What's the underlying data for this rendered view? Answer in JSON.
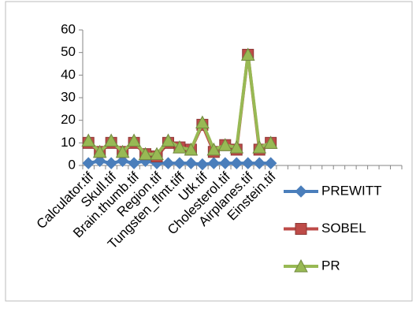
{
  "chart_data": {
    "type": "line",
    "categories": [
      "Calculator.tif",
      null,
      "Skull.tif",
      null,
      "Brain.thumb.tif",
      null,
      "Region.tif",
      null,
      "Tungsten_flmt.tiff",
      null,
      "Utk.tif",
      null,
      "Cholesterol.tif",
      null,
      "Airplanes.tif",
      null,
      "Einstein.tif",
      null,
      null,
      null,
      null,
      null,
      null,
      null,
      null,
      null,
      null,
      null
    ],
    "series": [
      {
        "name": "PREWITT",
        "color": "#4a7ebb",
        "marker": "diamond",
        "values": [
          1,
          2,
          1,
          2,
          1,
          2,
          1,
          1,
          1,
          1,
          0.5,
          1,
          1,
          1,
          1,
          1,
          1,
          null,
          null,
          null,
          null,
          null,
          null,
          null,
          null,
          null,
          null,
          null
        ]
      },
      {
        "name": "SOBEL",
        "color": "#be4b48",
        "marker": "square",
        "values": [
          10,
          6,
          10,
          6,
          10,
          5,
          4,
          10,
          8,
          7,
          18,
          6,
          9,
          7,
          49,
          7,
          10,
          null,
          null,
          null,
          null,
          null,
          null,
          null,
          null,
          null,
          null,
          null
        ]
      },
      {
        "name": "PR",
        "color": "#98b954",
        "marker": "triangle",
        "values": [
          11,
          6,
          11,
          6,
          11,
          5,
          5,
          11,
          8,
          7,
          19,
          7,
          9,
          8,
          49,
          8,
          10,
          null,
          null,
          null,
          null,
          null,
          null,
          null,
          null,
          null,
          null,
          null
        ]
      }
    ],
    "ylim": [
      0,
      60
    ],
    "yticks": [
      0,
      10,
      20,
      30,
      40,
      50,
      60
    ],
    "grid": false,
    "legend": "right"
  }
}
